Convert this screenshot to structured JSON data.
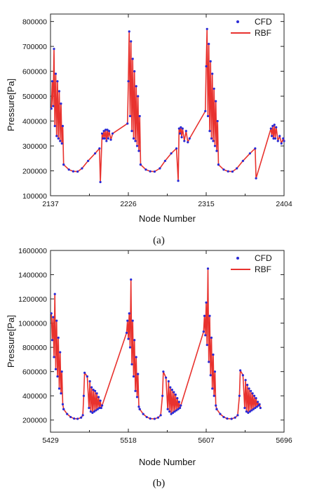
{
  "chart_data": [
    {
      "type": "line",
      "panel_label": "(a)",
      "xlabel": "Node Number",
      "ylabel": "Pressure[Pa]",
      "x_ticks": [
        2137,
        2226,
        2315,
        2404
      ],
      "xlim": [
        2137,
        2404
      ],
      "y_ticks": [
        100000,
        200000,
        300000,
        400000,
        500000,
        600000,
        700000,
        800000
      ],
      "ylim": [
        100000,
        830000
      ],
      "legend_position": "top-right",
      "series": [
        {
          "name": "CFD",
          "marker": "dot",
          "color": "#2a2ad6"
        },
        {
          "name": "RBF",
          "marker": "line",
          "color": "#e8322e"
        }
      ],
      "spikes": [
        {
          "x": 2138,
          "y": 450000
        },
        {
          "x": 2139,
          "y": 560000
        },
        {
          "x": 2140,
          "y": 460000
        },
        {
          "x": 2141,
          "y": 690000
        },
        {
          "x": 2142,
          "y": 380000
        },
        {
          "x": 2143,
          "y": 590000
        },
        {
          "x": 2144,
          "y": 340000
        },
        {
          "x": 2145,
          "y": 560000
        },
        {
          "x": 2146,
          "y": 330000
        },
        {
          "x": 2147,
          "y": 520000
        },
        {
          "x": 2148,
          "y": 320000
        },
        {
          "x": 2149,
          "y": 470000
        },
        {
          "x": 2150,
          "y": 310000
        },
        {
          "x": 2151,
          "y": 380000
        },
        {
          "x": 2152,
          "y": 225000
        },
        {
          "x": 2196,
          "y": 350000
        },
        {
          "x": 2197,
          "y": 330000
        },
        {
          "x": 2198,
          "y": 360000
        },
        {
          "x": 2199,
          "y": 330000
        },
        {
          "x": 2200,
          "y": 365000
        },
        {
          "x": 2201,
          "y": 320000
        },
        {
          "x": 2202,
          "y": 365000
        },
        {
          "x": 2203,
          "y": 330000
        },
        {
          "x": 2204,
          "y": 360000
        },
        {
          "x": 2206,
          "y": 325000
        },
        {
          "x": 2208,
          "y": 350000
        },
        {
          "x": 2225,
          "y": 390000
        },
        {
          "x": 2226,
          "y": 560000
        },
        {
          "x": 2227,
          "y": 760000
        },
        {
          "x": 2228,
          "y": 420000
        },
        {
          "x": 2229,
          "y": 720000
        },
        {
          "x": 2230,
          "y": 360000
        },
        {
          "x": 2231,
          "y": 650000
        },
        {
          "x": 2232,
          "y": 330000
        },
        {
          "x": 2233,
          "y": 600000
        },
        {
          "x": 2234,
          "y": 320000
        },
        {
          "x": 2235,
          "y": 540000
        },
        {
          "x": 2236,
          "y": 300000
        },
        {
          "x": 2237,
          "y": 500000
        },
        {
          "x": 2238,
          "y": 280000
        },
        {
          "x": 2239,
          "y": 420000
        },
        {
          "x": 2240,
          "y": 225000
        },
        {
          "x": 2284,
          "y": 370000
        },
        {
          "x": 2285,
          "y": 350000
        },
        {
          "x": 2286,
          "y": 375000
        },
        {
          "x": 2287,
          "y": 335000
        },
        {
          "x": 2288,
          "y": 370000
        },
        {
          "x": 2290,
          "y": 320000
        },
        {
          "x": 2292,
          "y": 360000
        },
        {
          "x": 2294,
          "y": 315000
        },
        {
          "x": 2296,
          "y": 330000
        },
        {
          "x": 2314,
          "y": 440000
        },
        {
          "x": 2315,
          "y": 620000
        },
        {
          "x": 2316,
          "y": 770000
        },
        {
          "x": 2317,
          "y": 420000
        },
        {
          "x": 2318,
          "y": 710000
        },
        {
          "x": 2319,
          "y": 360000
        },
        {
          "x": 2320,
          "y": 640000
        },
        {
          "x": 2321,
          "y": 330000
        },
        {
          "x": 2322,
          "y": 590000
        },
        {
          "x": 2323,
          "y": 320000
        },
        {
          "x": 2324,
          "y": 530000
        },
        {
          "x": 2325,
          "y": 300000
        },
        {
          "x": 2326,
          "y": 480000
        },
        {
          "x": 2327,
          "y": 280000
        },
        {
          "x": 2328,
          "y": 400000
        },
        {
          "x": 2329,
          "y": 225000
        },
        {
          "x": 2389,
          "y": 370000
        },
        {
          "x": 2390,
          "y": 340000
        },
        {
          "x": 2391,
          "y": 380000
        },
        {
          "x": 2392,
          "y": 330000
        },
        {
          "x": 2393,
          "y": 385000
        },
        {
          "x": 2394,
          "y": 330000
        },
        {
          "x": 2395,
          "y": 375000
        },
        {
          "x": 2397,
          "y": 320000
        },
        {
          "x": 2399,
          "y": 340000
        },
        {
          "x": 2401,
          "y": 310000
        },
        {
          "x": 2403,
          "y": 330000
        },
        {
          "x": 2404,
          "y": 320000
        }
      ],
      "troughs": [
        {
          "x": 2152,
          "y": 225000
        },
        {
          "x": 2158,
          "y": 205000
        },
        {
          "x": 2163,
          "y": 198000
        },
        {
          "x": 2168,
          "y": 197000
        },
        {
          "x": 2173,
          "y": 210000
        },
        {
          "x": 2180,
          "y": 240000
        },
        {
          "x": 2188,
          "y": 270000
        },
        {
          "x": 2193,
          "y": 290000
        },
        {
          "x": 2240,
          "y": 225000
        },
        {
          "x": 2246,
          "y": 205000
        },
        {
          "x": 2251,
          "y": 198000
        },
        {
          "x": 2256,
          "y": 197000
        },
        {
          "x": 2262,
          "y": 210000
        },
        {
          "x": 2268,
          "y": 240000
        },
        {
          "x": 2275,
          "y": 270000
        },
        {
          "x": 2281,
          "y": 290000
        },
        {
          "x": 2329,
          "y": 225000
        },
        {
          "x": 2335,
          "y": 205000
        },
        {
          "x": 2340,
          "y": 198000
        },
        {
          "x": 2345,
          "y": 197000
        },
        {
          "x": 2350,
          "y": 210000
        },
        {
          "x": 2357,
          "y": 240000
        },
        {
          "x": 2365,
          "y": 270000
        },
        {
          "x": 2371,
          "y": 290000
        }
      ],
      "drops": [
        {
          "x": 2194,
          "y": 155000
        },
        {
          "x": 2283,
          "y": 160000
        },
        {
          "x": 2372,
          "y": 170000
        }
      ]
    },
    {
      "type": "line",
      "panel_label": "(b)",
      "xlabel": "Node Number",
      "ylabel": "Pressure[Pa]",
      "x_ticks": [
        5429,
        5518,
        5607,
        5696
      ],
      "xlim": [
        5429,
        5696
      ],
      "y_ticks": [
        200000,
        400000,
        600000,
        800000,
        1000000,
        1200000,
        1400000,
        1600000
      ],
      "ylim": [
        100000,
        1600000
      ],
      "legend_position": "top-right",
      "series": [
        {
          "name": "CFD",
          "marker": "dot",
          "color": "#2a2ad6"
        },
        {
          "name": "RBF",
          "marker": "line",
          "color": "#e8322e"
        }
      ],
      "spikes": [
        {
          "x": 5430,
          "y": 1080000
        },
        {
          "x": 5431,
          "y": 860000
        },
        {
          "x": 5432,
          "y": 1050000
        },
        {
          "x": 5433,
          "y": 720000
        },
        {
          "x": 5434,
          "y": 1240000
        },
        {
          "x": 5435,
          "y": 620000
        },
        {
          "x": 5436,
          "y": 1020000
        },
        {
          "x": 5437,
          "y": 560000
        },
        {
          "x": 5438,
          "y": 880000
        },
        {
          "x": 5439,
          "y": 460000
        },
        {
          "x": 5440,
          "y": 760000
        },
        {
          "x": 5441,
          "y": 420000
        },
        {
          "x": 5442,
          "y": 600000
        },
        {
          "x": 5443,
          "y": 330000
        },
        {
          "x": 5444,
          "y": 290000
        },
        {
          "x": 5468,
          "y": 590000
        },
        {
          "x": 5471,
          "y": 560000
        },
        {
          "x": 5473,
          "y": 300000
        },
        {
          "x": 5474,
          "y": 520000
        },
        {
          "x": 5475,
          "y": 270000
        },
        {
          "x": 5476,
          "y": 470000
        },
        {
          "x": 5477,
          "y": 260000
        },
        {
          "x": 5478,
          "y": 450000
        },
        {
          "x": 5479,
          "y": 270000
        },
        {
          "x": 5480,
          "y": 440000
        },
        {
          "x": 5481,
          "y": 280000
        },
        {
          "x": 5482,
          "y": 420000
        },
        {
          "x": 5483,
          "y": 290000
        },
        {
          "x": 5484,
          "y": 390000
        },
        {
          "x": 5485,
          "y": 300000
        },
        {
          "x": 5486,
          "y": 360000
        },
        {
          "x": 5487,
          "y": 300000
        },
        {
          "x": 5488,
          "y": 320000
        },
        {
          "x": 5516,
          "y": 920000
        },
        {
          "x": 5517,
          "y": 1020000
        },
        {
          "x": 5518,
          "y": 870000
        },
        {
          "x": 5519,
          "y": 1080000
        },
        {
          "x": 5520,
          "y": 800000
        },
        {
          "x": 5521,
          "y": 1360000
        },
        {
          "x": 5522,
          "y": 660000
        },
        {
          "x": 5523,
          "y": 1020000
        },
        {
          "x": 5524,
          "y": 560000
        },
        {
          "x": 5525,
          "y": 860000
        },
        {
          "x": 5526,
          "y": 440000
        },
        {
          "x": 5527,
          "y": 720000
        },
        {
          "x": 5528,
          "y": 390000
        },
        {
          "x": 5529,
          "y": 580000
        },
        {
          "x": 5530,
          "y": 310000
        },
        {
          "x": 5531,
          "y": 290000
        },
        {
          "x": 5558,
          "y": 600000
        },
        {
          "x": 5561,
          "y": 550000
        },
        {
          "x": 5563,
          "y": 290000
        },
        {
          "x": 5564,
          "y": 520000
        },
        {
          "x": 5565,
          "y": 270000
        },
        {
          "x": 5566,
          "y": 470000
        },
        {
          "x": 5567,
          "y": 250000
        },
        {
          "x": 5568,
          "y": 450000
        },
        {
          "x": 5569,
          "y": 260000
        },
        {
          "x": 5570,
          "y": 430000
        },
        {
          "x": 5571,
          "y": 270000
        },
        {
          "x": 5572,
          "y": 410000
        },
        {
          "x": 5573,
          "y": 280000
        },
        {
          "x": 5574,
          "y": 380000
        },
        {
          "x": 5575,
          "y": 290000
        },
        {
          "x": 5576,
          "y": 350000
        },
        {
          "x": 5577,
          "y": 300000
        },
        {
          "x": 5578,
          "y": 320000
        },
        {
          "x": 5604,
          "y": 930000
        },
        {
          "x": 5605,
          "y": 1060000
        },
        {
          "x": 5606,
          "y": 900000
        },
        {
          "x": 5607,
          "y": 1170000
        },
        {
          "x": 5608,
          "y": 820000
        },
        {
          "x": 5609,
          "y": 1450000
        },
        {
          "x": 5610,
          "y": 680000
        },
        {
          "x": 5611,
          "y": 1060000
        },
        {
          "x": 5612,
          "y": 570000
        },
        {
          "x": 5613,
          "y": 880000
        },
        {
          "x": 5614,
          "y": 460000
        },
        {
          "x": 5615,
          "y": 740000
        },
        {
          "x": 5616,
          "y": 400000
        },
        {
          "x": 5617,
          "y": 600000
        },
        {
          "x": 5618,
          "y": 320000
        },
        {
          "x": 5619,
          "y": 290000
        },
        {
          "x": 5646,
          "y": 610000
        },
        {
          "x": 5649,
          "y": 570000
        },
        {
          "x": 5651,
          "y": 300000
        },
        {
          "x": 5652,
          "y": 530000
        },
        {
          "x": 5653,
          "y": 270000
        },
        {
          "x": 5654,
          "y": 490000
        },
        {
          "x": 5655,
          "y": 260000
        },
        {
          "x": 5656,
          "y": 460000
        },
        {
          "x": 5657,
          "y": 270000
        },
        {
          "x": 5658,
          "y": 440000
        },
        {
          "x": 5659,
          "y": 280000
        },
        {
          "x": 5660,
          "y": 420000
        },
        {
          "x": 5661,
          "y": 290000
        },
        {
          "x": 5662,
          "y": 400000
        },
        {
          "x": 5663,
          "y": 300000
        },
        {
          "x": 5664,
          "y": 380000
        },
        {
          "x": 5665,
          "y": 310000
        },
        {
          "x": 5666,
          "y": 350000
        },
        {
          "x": 5667,
          "y": 320000
        },
        {
          "x": 5668,
          "y": 330000
        },
        {
          "x": 5669,
          "y": 300000
        }
      ],
      "troughs": [
        {
          "x": 5444,
          "y": 290000
        },
        {
          "x": 5448,
          "y": 250000
        },
        {
          "x": 5452,
          "y": 225000
        },
        {
          "x": 5456,
          "y": 212000
        },
        {
          "x": 5460,
          "y": 210000
        },
        {
          "x": 5464,
          "y": 220000
        },
        {
          "x": 5466,
          "y": 240000
        },
        {
          "x": 5467,
          "y": 400000
        },
        {
          "x": 5531,
          "y": 290000
        },
        {
          "x": 5535,
          "y": 250000
        },
        {
          "x": 5539,
          "y": 225000
        },
        {
          "x": 5543,
          "y": 212000
        },
        {
          "x": 5548,
          "y": 210000
        },
        {
          "x": 5552,
          "y": 220000
        },
        {
          "x": 5555,
          "y": 240000
        },
        {
          "x": 5557,
          "y": 400000
        },
        {
          "x": 5619,
          "y": 290000
        },
        {
          "x": 5623,
          "y": 250000
        },
        {
          "x": 5627,
          "y": 225000
        },
        {
          "x": 5631,
          "y": 212000
        },
        {
          "x": 5636,
          "y": 210000
        },
        {
          "x": 5640,
          "y": 220000
        },
        {
          "x": 5643,
          "y": 240000
        },
        {
          "x": 5645,
          "y": 400000
        }
      ],
      "drops": []
    }
  ],
  "legend_labels": {
    "cfd": "CFD",
    "rbf": "RBF"
  }
}
